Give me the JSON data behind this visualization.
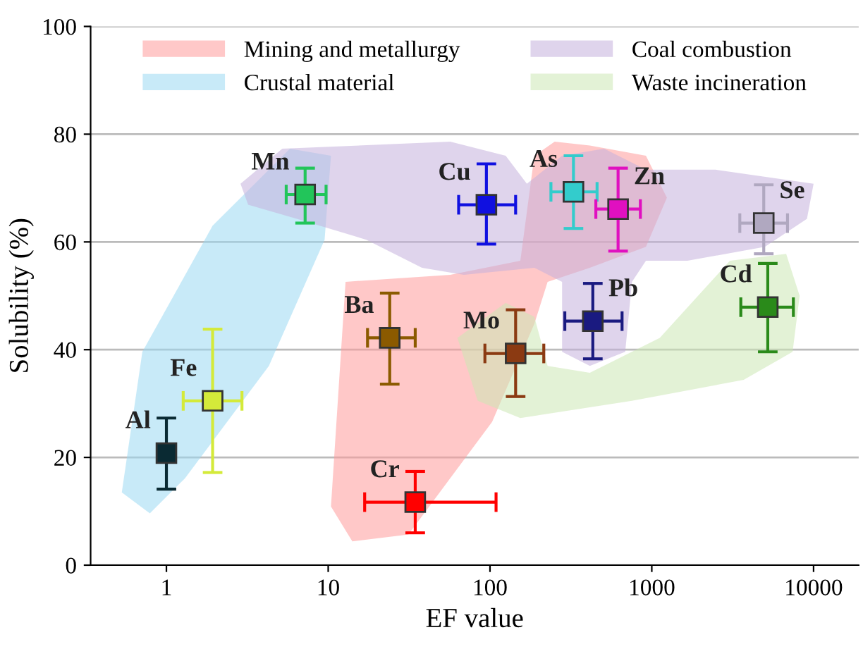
{
  "chart_data": {
    "type": "scatter",
    "xlabel": "EF value",
    "ylabel": "Solubility (%)",
    "log": "x",
    "xlim": [
      0.34,
      19000
    ],
    "ylim": [
      0,
      100
    ],
    "xticks": [
      1,
      10,
      100,
      1000,
      10000
    ],
    "yticks": [
      0,
      20,
      40,
      60,
      80,
      100
    ],
    "grid": "y",
    "legend": "top",
    "marker": "square",
    "series": [
      {
        "type": "other",
        "name": "Mining and metallurgy",
        "color": "#ff9a9a"
      },
      {
        "type": "other",
        "name": "Crustal material",
        "color": "#9ad8f2"
      },
      {
        "type": "other",
        "name": "Coal combustion",
        "color": "#c4b0dc"
      },
      {
        "type": "other",
        "name": "Waste incineration",
        "color": "#cce8b4"
      },
      {
        "name": "Al",
        "color": "#0a2a33",
        "x": [
          1
        ],
        "values": [
          20.8
        ],
        "errors": [
          [
            14.1,
            27.3
          ]
        ]
      },
      {
        "name": "Fe",
        "color": "#d4ea3a",
        "x": [
          1.93
        ],
        "values": [
          30.5
        ],
        "errors": [
          [
            17.2,
            43.8
          ]
        ],
        "xerrors": [
          [
            1.27,
            2.93
          ]
        ]
      },
      {
        "name": "Mn",
        "color": "#22c55a",
        "x": [
          7.2
        ],
        "values": [
          68.8
        ],
        "errors": [
          [
            63.5,
            73.7
          ]
        ],
        "xerrors": [
          [
            5.5,
            9.7
          ]
        ]
      },
      {
        "name": "Cu",
        "color": "#1010e0",
        "x": [
          95
        ],
        "values": [
          66.9
        ],
        "errors": [
          [
            59.6,
            74.5
          ]
        ],
        "xerrors": [
          [
            64,
            144
          ]
        ]
      },
      {
        "name": "Ba",
        "color": "#8b5a00",
        "x": [
          24
        ],
        "values": [
          42.2
        ],
        "errors": [
          [
            33.6,
            50.5
          ]
        ],
        "xerrors": [
          [
            17.5,
            34.5
          ]
        ]
      },
      {
        "name": "Cr",
        "color": "#ff0000",
        "x": [
          34.5
        ],
        "values": [
          11.7
        ],
        "errors": [
          [
            6,
            17.4
          ]
        ],
        "xerrors": [
          [
            16.8,
            109
          ]
        ]
      },
      {
        "name": "Mo",
        "color": "#8b3a12",
        "x": [
          144
        ],
        "values": [
          39.3
        ],
        "errors": [
          [
            31.3,
            47.4
          ]
        ],
        "xerrors": [
          [
            93,
            215
          ]
        ]
      },
      {
        "name": "As",
        "color": "#33cccc",
        "x": [
          328
        ],
        "values": [
          69.3
        ],
        "errors": [
          [
            62.5,
            76
          ]
        ],
        "xerrors": [
          [
            238,
            459
          ]
        ]
      },
      {
        "name": "Zn",
        "color": "#e010c0",
        "x": [
          619
        ],
        "values": [
          66.1
        ],
        "errors": [
          [
            58.3,
            73.7
          ]
        ],
        "xerrors": [
          [
            451,
            850
          ]
        ]
      },
      {
        "name": "Pb",
        "color": "#1a1a80",
        "x": [
          432
        ],
        "values": [
          45.3
        ],
        "errors": [
          [
            38.3,
            52.3
          ]
        ],
        "xerrors": [
          [
            290,
            655
          ]
        ]
      },
      {
        "name": "Se",
        "color": "#b0a8c0",
        "x": [
          4920
        ],
        "values": [
          63.5
        ],
        "errors": [
          [
            57.8,
            70.6
          ]
        ],
        "xerrors": [
          [
            3500,
            6900
          ]
        ]
      },
      {
        "name": "Cd",
        "color": "#2a8a1a",
        "x": [
          5210
        ],
        "values": [
          47.9
        ],
        "errors": [
          [
            39.6,
            56
          ]
        ],
        "xerrors": [
          [
            3550,
            7500
          ]
        ]
      }
    ]
  }
}
